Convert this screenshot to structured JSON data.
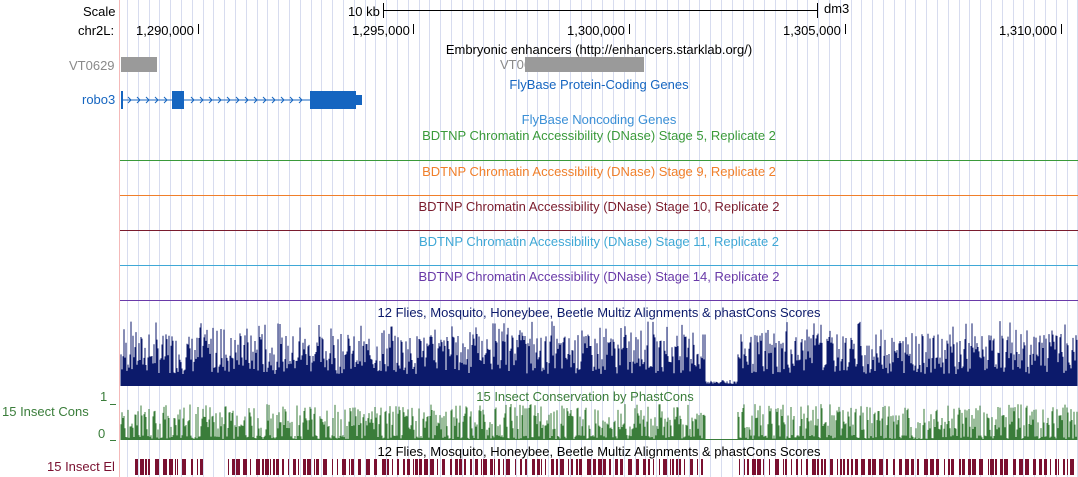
{
  "scale": {
    "scale_label": "Scale",
    "chrom_label": "chr2L:",
    "bar_label": "10 kb",
    "assembly": "dm3",
    "positions": [
      "1,290,000",
      "1,295,000",
      "1,300,000",
      "1,305,000",
      "1,310,000"
    ]
  },
  "tracks": {
    "enhancers": {
      "title": "Embryonic enhancers (http://enhancers.starklab.org/)",
      "item1": "VT0629",
      "item2": "VT0635"
    },
    "flybase_coding": {
      "title": "FlyBase Protein-Coding Genes",
      "gene": "robo3",
      "color": "#1565c0"
    },
    "flybase_noncoding": {
      "title": "FlyBase Noncoding Genes",
      "color": "#3a8fd6"
    },
    "dnase": [
      {
        "title": "BDTNP Chromatin Accessibility (DNase) Stage 5, Replicate 2",
        "color": "#3a9a3a"
      },
      {
        "title": "BDTNP Chromatin Accessibility (DNase) Stage 9, Replicate 2",
        "color": "#f07f2a"
      },
      {
        "title": "BDTNP Chromatin Accessibility (DNase) Stage 10, Replicate 2",
        "color": "#7a1c2e"
      },
      {
        "title": "BDTNP Chromatin Accessibility (DNase) Stage 11, Replicate 2",
        "color": "#3fa8d6"
      },
      {
        "title": "BDTNP Chromatin Accessibility (DNase) Stage 14, Replicate 2",
        "color": "#6a3aa8"
      }
    ],
    "multiz": {
      "title": "12 Flies, Mosquito, Honeybee, Beetle Multiz Alignments & phastCons Scores",
      "color": "#0c1a6b"
    },
    "insect_cons": {
      "title": "15 Insect Conservation by PhastCons",
      "side_label": "15 Insect Cons",
      "ymax": "1",
      "ymin": "0",
      "color": "#3a7d3a"
    },
    "multiz2": {
      "title": "12 Flies, Mosquito, Honeybee, Beetle Multiz Alignments & phastCons Scores",
      "side_label": "15 Insect El",
      "color": "#7a1030"
    }
  }
}
